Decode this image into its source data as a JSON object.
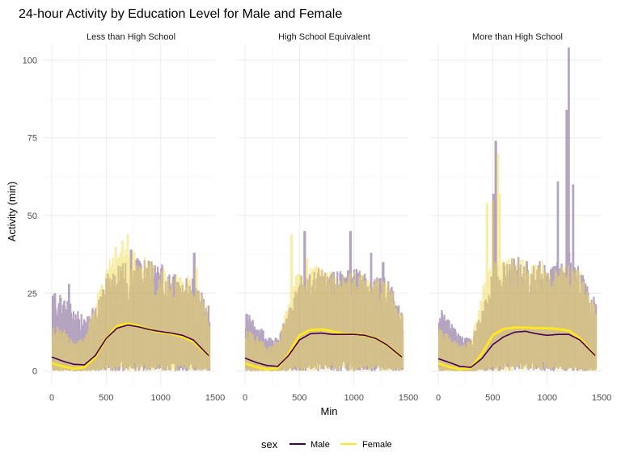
{
  "chart_data": {
    "type": "area",
    "title": "24-hour Activity by Education Level for Male and Female",
    "xlabel": "Min",
    "ylabel": "Activity (min)",
    "xlim": [
      0,
      1440
    ],
    "ylim": [
      0,
      105
    ],
    "x_ticks": [
      "0",
      "500",
      "1000",
      "1500"
    ],
    "y_ticks": [
      "0",
      "25",
      "50",
      "75",
      "100"
    ],
    "grid": true,
    "legend": {
      "title": "sex",
      "position": "bottom",
      "entries": [
        "Male",
        "Female"
      ]
    },
    "colors": {
      "Male": "#440154",
      "Female": "#FDE725",
      "Male_area": "#9B7FA6",
      "Female_area": "#F0DE7A",
      "overlap": "#CFB06A"
    },
    "panels": [
      {
        "label": "Less than High School",
        "series": [
          {
            "name": "Male",
            "smooth_x": [
              0,
              100,
              200,
              300,
              400,
              500,
              600,
              700,
              800,
              900,
              1000,
              1100,
              1200,
              1300,
              1440
            ],
            "smooth_y": [
              4.5,
              3.2,
              2.2,
              2.0,
              5.0,
              10.5,
              13.8,
              14.8,
              14.2,
              13.3,
              12.7,
              12.2,
              11.5,
              10.0,
              5.0
            ],
            "upper_x": [
              0,
              100,
              200,
              300,
              400,
              500,
              600,
              700,
              800,
              900,
              1000,
              1100,
              1200,
              1300,
              1440
            ],
            "upper_y": [
              22,
              21,
              18,
              15,
              19,
              28,
              30,
              31,
              32,
              31,
              30,
              28,
              27,
              26,
              18
            ],
            "peaks": [
              [
                20,
                25
              ],
              [
                150,
                28
              ],
              [
                720,
                39
              ],
              [
                1000,
                33
              ],
              [
                1300,
                38
              ]
            ]
          },
          {
            "name": "Female",
            "smooth_x": [
              0,
              100,
              200,
              300,
              400,
              500,
              600,
              700,
              800,
              900,
              1000,
              1100,
              1200,
              1300,
              1440
            ],
            "smooth_y": [
              2.5,
              1.5,
              0.8,
              1.2,
              4.5,
              10.5,
              14.5,
              15.3,
              14.5,
              13.3,
              12.5,
              12.0,
              11.0,
              9.5,
              5.0
            ],
            "upper_x": [
              0,
              100,
              200,
              300,
              400,
              500,
              600,
              700,
              800,
              900,
              1000,
              1100,
              1200,
              1300,
              1440
            ],
            "upper_y": [
              14,
              12,
              8,
              10,
              20,
              32,
              34,
              35,
              33,
              31,
              29,
              28,
              27,
              26,
              17
            ],
            "peaks": [
              [
                580,
                40
              ],
              [
                640,
                42
              ],
              [
                690,
                44
              ],
              [
                1320,
                33
              ]
            ]
          }
        ]
      },
      {
        "label": "High School Equivalent",
        "series": [
          {
            "name": "Male",
            "smooth_x": [
              0,
              100,
              200,
              300,
              400,
              500,
              600,
              700,
              800,
              900,
              1000,
              1100,
              1200,
              1300,
              1440
            ],
            "smooth_y": [
              4.2,
              2.8,
              1.8,
              1.5,
              5.0,
              10.0,
              12.0,
              12.2,
              11.8,
              11.8,
              11.8,
              11.5,
              10.5,
              8.5,
              4.5
            ],
            "upper_x": [
              0,
              100,
              200,
              300,
              400,
              500,
              600,
              700,
              800,
              900,
              1000,
              1100,
              1200,
              1300,
              1440
            ],
            "upper_y": [
              18,
              14,
              10,
              10,
              18,
              27,
              29,
              29,
              29,
              28,
              29,
              28,
              27,
              26,
              18
            ],
            "peaks": [
              [
                540,
                45
              ],
              [
                960,
                45
              ],
              [
                1150,
                38
              ],
              [
                1260,
                35
              ]
            ]
          },
          {
            "name": "Female",
            "smooth_x": [
              0,
              100,
              200,
              300,
              400,
              500,
              600,
              700,
              800,
              900,
              1000,
              1100,
              1200,
              1300,
              1440
            ],
            "smooth_y": [
              2.5,
              1.3,
              0.6,
              1.0,
              5.5,
              11.5,
              13.2,
              13.4,
              12.8,
              12.0,
              11.8,
              11.5,
              10.5,
              8.5,
              4.5
            ],
            "upper_x": [
              0,
              100,
              200,
              300,
              400,
              500,
              600,
              700,
              800,
              900,
              1000,
              1100,
              1200,
              1300,
              1440
            ],
            "upper_y": [
              12,
              10,
              7,
              9,
              22,
              30,
              30,
              29,
              28,
              28,
              28,
              27,
              26,
              25,
              16
            ],
            "peaks": [
              [
                420,
                44
              ],
              [
                560,
                36
              ]
            ]
          }
        ]
      },
      {
        "label": "More than High School",
        "series": [
          {
            "name": "Male",
            "smooth_x": [
              0,
              100,
              200,
              300,
              400,
              500,
              600,
              700,
              800,
              900,
              1000,
              1100,
              1200,
              1300,
              1440
            ],
            "smooth_y": [
              4.0,
              2.8,
              1.5,
              1.2,
              4.0,
              8.5,
              11.0,
              12.5,
              12.8,
              12.0,
              11.5,
              11.8,
              11.8,
              10.0,
              5.0
            ],
            "upper_x": [
              0,
              100,
              200,
              300,
              400,
              500,
              600,
              700,
              800,
              900,
              1000,
              1100,
              1200,
              1300,
              1440
            ],
            "upper_y": [
              18,
              15,
              10,
              9,
              18,
              30,
              31,
              32,
              32,
              31,
              30,
              31,
              34,
              28,
              20
            ],
            "peaks": [
              [
                500,
                57
              ],
              [
                520,
                74
              ],
              [
                1090,
                61
              ],
              [
                1170,
                84
              ],
              [
                1190,
                104
              ],
              [
                1230,
                60
              ]
            ]
          },
          {
            "name": "Female",
            "smooth_x": [
              0,
              100,
              200,
              300,
              400,
              500,
              600,
              700,
              800,
              900,
              1000,
              1100,
              1200,
              1300,
              1440
            ],
            "smooth_y": [
              2.5,
              1.3,
              0.6,
              1.0,
              5.5,
              11.5,
              13.5,
              14.0,
              14.0,
              13.8,
              13.8,
              13.5,
              13.0,
              10.5,
              5.0
            ],
            "upper_x": [
              0,
              100,
              200,
              300,
              400,
              500,
              600,
              700,
              800,
              900,
              1000,
              1100,
              1200,
              1300,
              1440
            ],
            "upper_y": [
              12,
              10,
              7,
              9,
              24,
              32,
              32,
              32,
              31,
              31,
              31,
              30,
              30,
              28,
              18
            ],
            "peaks": [
              [
                440,
                54
              ],
              [
                490,
                55
              ],
              [
                540,
                70
              ],
              [
                555,
                57
              ]
            ]
          }
        ]
      }
    ]
  }
}
